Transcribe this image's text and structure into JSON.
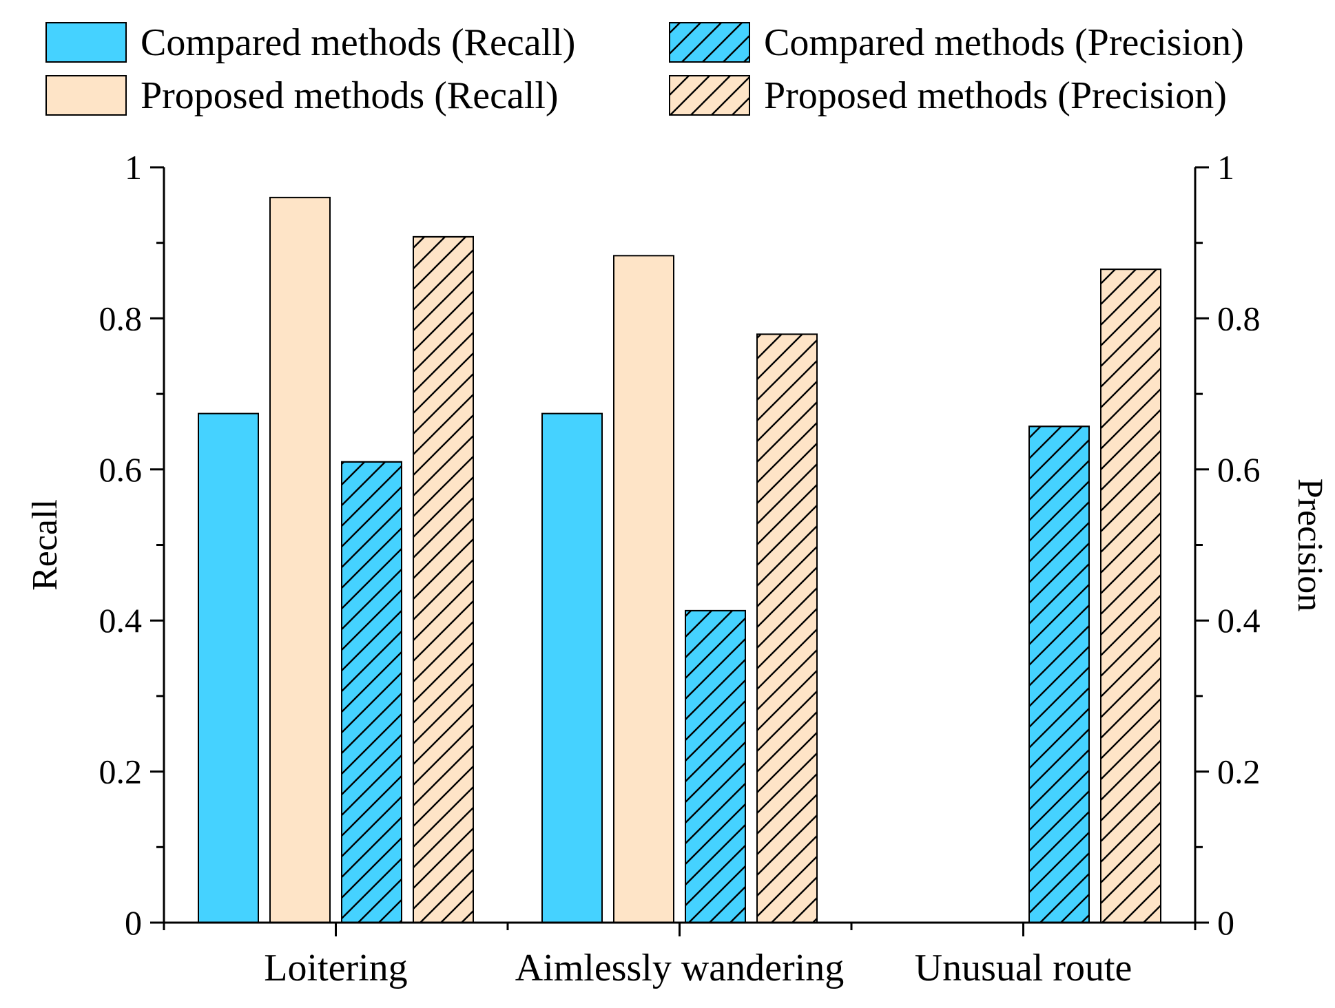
{
  "chart_data": {
    "type": "bar",
    "categories": [
      "Loitering",
      "Aimlessly wandering",
      "Unusual route"
    ],
    "series": [
      {
        "name": "Compared methods (Recall)",
        "axis": "left",
        "values": [
          0.674,
          0.674,
          null
        ],
        "color": "#45D2FF",
        "hatched": false
      },
      {
        "name": "Proposed methods (Recall)",
        "axis": "left",
        "values": [
          0.96,
          0.883,
          null
        ],
        "color": "#FEE4C7",
        "hatched": false
      },
      {
        "name": "Compared methods (Precision)",
        "axis": "right",
        "values": [
          0.61,
          0.413,
          0.657
        ],
        "color": "#45D2FF",
        "hatched": true
      },
      {
        "name": "Proposed methods (Precision)",
        "axis": "right",
        "values": [
          0.908,
          0.779,
          0.865
        ],
        "color": "#FEE4C7",
        "hatched": true
      }
    ],
    "ylabel": "Recall",
    "y2label": "Precision",
    "ylim": [
      0,
      1
    ],
    "y2lim": [
      0,
      1
    ],
    "yticks": [
      "0",
      "0.2",
      "0.4",
      "0.6",
      "0.8",
      "1"
    ],
    "y2ticks": [
      "0",
      "0.2",
      "0.4",
      "0.6",
      "0.8",
      "1"
    ],
    "legend_position": "top",
    "grid": false
  }
}
